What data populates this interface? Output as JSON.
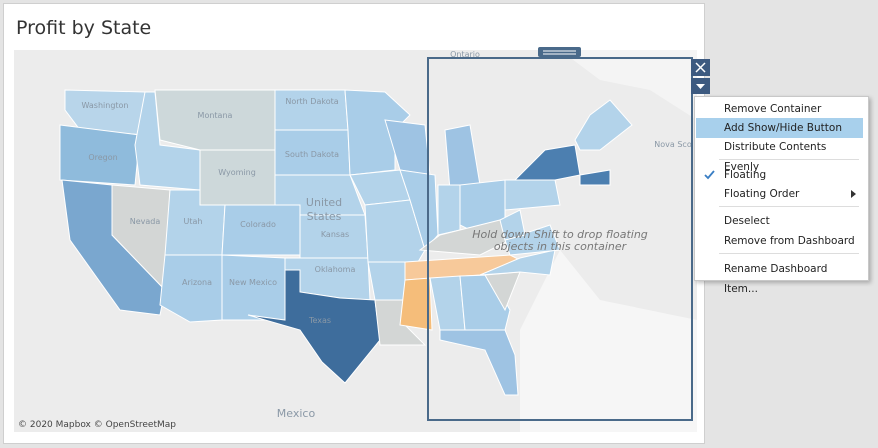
{
  "title": "Profit by State",
  "map": {
    "labels": [
      "Ontario",
      "Nova Sco",
      "Washington",
      "Oregon",
      "Montana",
      "North Dakota",
      "South Dakota",
      "Wyoming",
      "Nevada",
      "Utah",
      "Colorado",
      "United",
      "States",
      "Kansas",
      "Oklahoma",
      "Arizona",
      "New Mexico",
      "Texas",
      "Mexico"
    ],
    "attribution": "© 2020 Mapbox © OpenStreetMap",
    "drop_hint": [
      "Hold down Shift to drop floating",
      "objects in this container"
    ]
  },
  "menu": {
    "items": [
      "Remove Container",
      "Add Show/Hide Button",
      "Distribute Contents Evenly",
      "Floating",
      "Floating Order",
      "Deselect",
      "Remove from Dashboard",
      "Rename Dashboard Item..."
    ]
  }
}
